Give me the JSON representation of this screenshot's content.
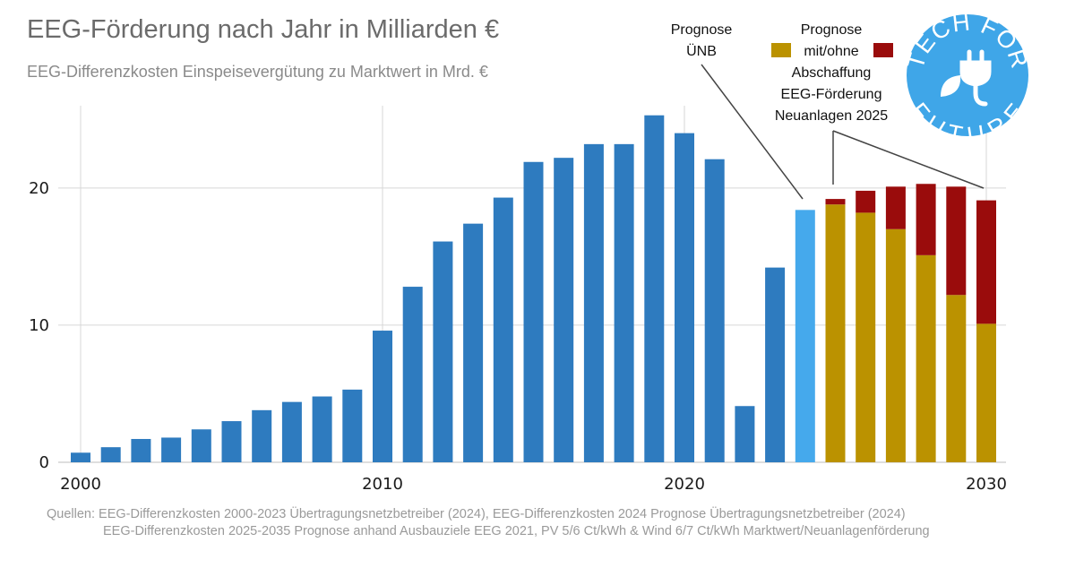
{
  "chart_data": {
    "type": "bar",
    "title": "EEG-Förderung nach Jahr in Milliarden €",
    "subtitle": "EEG-Differenzkosten Einspeisevergütung zu Marktwert in Mrd. €",
    "xlabel": "",
    "ylabel": "",
    "xlim": [
      2000,
      2030
    ],
    "ylim": [
      0,
      26
    ],
    "x_ticks": [
      "2000",
      "2010",
      "2020",
      "2030"
    ],
    "y_ticks": [
      "0",
      "10",
      "20"
    ],
    "grid": true,
    "stacked": true,
    "categories": [
      2000,
      2001,
      2002,
      2003,
      2004,
      2005,
      2006,
      2007,
      2008,
      2009,
      2010,
      2011,
      2012,
      2013,
      2014,
      2015,
      2016,
      2017,
      2018,
      2019,
      2020,
      2021,
      2022,
      2023,
      2024,
      2025,
      2026,
      2027,
      2028,
      2029,
      2030
    ],
    "series": [
      {
        "name": "",
        "color": "#2e7bbf",
        "values": [
          0.7,
          1.1,
          1.7,
          1.8,
          2.4,
          3.0,
          3.8,
          4.4,
          4.8,
          5.3,
          9.6,
          12.8,
          16.1,
          17.4,
          19.3,
          21.9,
          22.2,
          23.2,
          23.2,
          25.3,
          24.0,
          22.1,
          4.1,
          14.2,
          null,
          null,
          null,
          null,
          null,
          null,
          null
        ]
      },
      {
        "name": "Prognose ÜNB",
        "color": "#45a9ec",
        "values": [
          null,
          null,
          null,
          null,
          null,
          null,
          null,
          null,
          null,
          null,
          null,
          null,
          null,
          null,
          null,
          null,
          null,
          null,
          null,
          null,
          null,
          null,
          null,
          null,
          18.4,
          null,
          null,
          null,
          null,
          null,
          null
        ]
      },
      {
        "name": "mit",
        "color": "#bb9200",
        "values": [
          null,
          null,
          null,
          null,
          null,
          null,
          null,
          null,
          null,
          null,
          null,
          null,
          null,
          null,
          null,
          null,
          null,
          null,
          null,
          null,
          null,
          null,
          null,
          null,
          null,
          18.8,
          18.2,
          17.0,
          15.1,
          12.2,
          10.1
        ]
      },
      {
        "name": "ohne",
        "color": "#9a0c0c",
        "values": [
          null,
          null,
          null,
          null,
          null,
          null,
          null,
          null,
          null,
          null,
          null,
          null,
          null,
          null,
          null,
          null,
          null,
          null,
          null,
          null,
          null,
          null,
          null,
          null,
          null,
          0.4,
          1.6,
          3.1,
          5.2,
          7.9,
          9.0
        ]
      }
    ],
    "annotations": {
      "prognose_uenb": [
        "Prognose",
        "ÜNB"
      ],
      "prognose_top": "Prognose",
      "legend_mid": "mit/ohne",
      "abschaffung": [
        "Abschaffung",
        "EEG-Förderung",
        "Neuanlagen 2025"
      ]
    },
    "sources": [
      "Quellen: EEG-Differenzkosten 2000-2023 Übertragungsnetzbetreiber (2024), EEG-Differenzkosten 2024 Prognose Übertragungsnetzbetreiber (2024)",
      "EEG-Differenzkosten 2025-2035 Prognose anhand Ausbauziele EEG 2021, PV 5/6 Ct/kWh & Wind 6/7 Ct/kWh Marktwert/Neuanlagenförderung"
    ]
  },
  "logo": {
    "text_top": "TECH FOR",
    "text_bottom": "FUTURE",
    "color": "#3fa6e8"
  }
}
